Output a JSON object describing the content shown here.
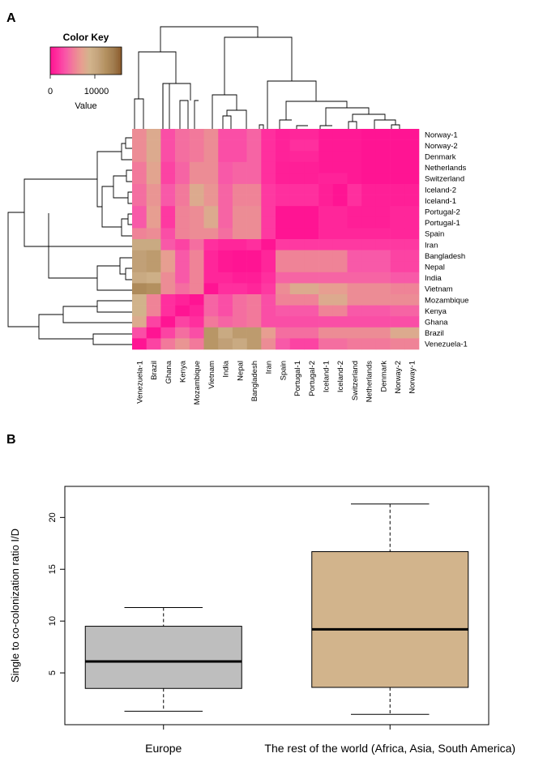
{
  "panels": {
    "a": "A",
    "b": "B"
  },
  "color_key": {
    "title": "Color Key",
    "xlabel": "Value",
    "ticks": [
      0,
      10000
    ],
    "tick_labels": [
      "0",
      "10000"
    ],
    "range": [
      0,
      16000
    ],
    "stops": [
      "#ff1493",
      "#ff34a0",
      "#f85aa8",
      "#f08098",
      "#e6a090",
      "#d2b48c",
      "#c4a47c",
      "#b4915f",
      "#a07c4f",
      "#8b5a2b"
    ]
  },
  "chart_data": [
    {
      "type": "heatmap",
      "title": "",
      "rows": [
        "Norway-1",
        "Norway-2",
        "Denmark",
        "Netherlands",
        "Switzerland",
        "Iceland-2",
        "Iceland-1",
        "Portugal-2",
        "Portugal-1",
        "Spain",
        "Iran",
        "Bangladesh",
        "Nepal",
        "India",
        "Vietnam",
        "Mozambique",
        "Kenya",
        "Ghana",
        "Brazil",
        "Venezuela-1"
      ],
      "columns": [
        "Venezuela-1",
        "Brazil",
        "Ghana",
        "Kenya",
        "Mozambique",
        "Vietnam",
        "India",
        "Nepal",
        "Bangladesh",
        "Iran",
        "Spain",
        "Portugal-1",
        "Portugal-2",
        "Iceland-1",
        "Iceland-2",
        "Switzerland",
        "Netherlands",
        "Denmark",
        "Norway-2",
        "Norway-1"
      ],
      "color_scale": [
        0,
        16000
      ],
      "values": [
        [
          6000,
          8000,
          3000,
          4500,
          5000,
          6000,
          3000,
          3000,
          4000,
          1500,
          800,
          1000,
          1000,
          300,
          300,
          300,
          0,
          0,
          0,
          0
        ],
        [
          6000,
          8000,
          3000,
          4500,
          5000,
          6000,
          3000,
          3000,
          4000,
          1500,
          800,
          1500,
          1500,
          300,
          300,
          300,
          0,
          0,
          0,
          0
        ],
        [
          6000,
          8000,
          3000,
          4500,
          5000,
          6000,
          3000,
          3000,
          4000,
          1500,
          800,
          1000,
          1000,
          300,
          300,
          300,
          0,
          0,
          0,
          0
        ],
        [
          5000,
          7500,
          2500,
          4000,
          6000,
          6000,
          3500,
          4000,
          4000,
          1500,
          600,
          600,
          600,
          300,
          300,
          300,
          0,
          0,
          0,
          0
        ],
        [
          5000,
          7500,
          2500,
          4000,
          6000,
          6000,
          3500,
          4000,
          4000,
          1500,
          600,
          600,
          600,
          800,
          800,
          300,
          0,
          0,
          0,
          0
        ],
        [
          4500,
          6500,
          3500,
          5000,
          8000,
          6500,
          4000,
          5500,
          5500,
          2000,
          1500,
          1500,
          1500,
          600,
          0,
          1500,
          600,
          600,
          600,
          600
        ],
        [
          4500,
          6500,
          3500,
          5000,
          8000,
          6500,
          4000,
          5500,
          5500,
          2000,
          1500,
          1500,
          1500,
          600,
          0,
          1500,
          600,
          600,
          600,
          600
        ],
        [
          3500,
          7000,
          2000,
          5500,
          6000,
          8000,
          4000,
          6000,
          6000,
          2000,
          0,
          0,
          0,
          1000,
          1000,
          600,
          600,
          600,
          1000,
          1000
        ],
        [
          3500,
          7000,
          2000,
          5500,
          6000,
          8000,
          4000,
          6000,
          6000,
          2000,
          0,
          0,
          0,
          1000,
          1000,
          600,
          600,
          600,
          1000,
          1000
        ],
        [
          5500,
          6000,
          3000,
          5500,
          6000,
          6000,
          4500,
          6000,
          6000,
          2000,
          0,
          0,
          0,
          1000,
          1000,
          1000,
          1000,
          1000,
          1000,
          1000
        ],
        [
          10000,
          10000,
          3500,
          2500,
          4500,
          1500,
          1000,
          1000,
          1500,
          0,
          2000,
          2000,
          2000,
          2000,
          2000,
          2000,
          2000,
          2000,
          2000,
          2000
        ],
        [
          11000,
          11500,
          7000,
          3500,
          5500,
          1000,
          200,
          0,
          0,
          1000,
          5500,
          5500,
          5500,
          5500,
          5500,
          3500,
          3500,
          3500,
          2500,
          2500
        ],
        [
          11000,
          11500,
          7000,
          3500,
          5500,
          1000,
          200,
          0,
          0,
          1000,
          5500,
          5500,
          5500,
          5500,
          5500,
          3500,
          3500,
          3500,
          2500,
          2500
        ],
        [
          10000,
          9500,
          6000,
          3500,
          5500,
          1000,
          1000,
          500,
          500,
          1500,
          4000,
          4000,
          4000,
          4000,
          4000,
          4000,
          4000,
          4000,
          3500,
          3500
        ],
        [
          13000,
          12500,
          6000,
          4500,
          5500,
          0,
          1500,
          1500,
          1000,
          2000,
          6000,
          8000,
          8000,
          7000,
          7000,
          6000,
          6000,
          6000,
          5500,
          5500
        ],
        [
          9000,
          5500,
          1500,
          800,
          0,
          4000,
          3000,
          4500,
          5000,
          3000,
          5500,
          5500,
          5500,
          8000,
          8000,
          6000,
          6000,
          6000,
          6000,
          6000
        ],
        [
          9000,
          5500,
          1500,
          0,
          800,
          4000,
          3000,
          4500,
          5000,
          3000,
          3500,
          3500,
          3500,
          5500,
          5500,
          3500,
          3500,
          3500,
          4000,
          4000
        ],
        [
          8000,
          2500,
          0,
          2500,
          1500,
          5000,
          4000,
          4500,
          5000,
          3000,
          3000,
          3000,
          3000,
          3000,
          3000,
          3000,
          3000,
          3000,
          3000,
          3000
        ],
        [
          3000,
          0,
          2500,
          4500,
          3000,
          12000,
          10000,
          11500,
          11500,
          7000,
          4500,
          4500,
          4500,
          6000,
          6000,
          6000,
          6000,
          6000,
          8000,
          8000
        ],
        [
          0,
          2500,
          5000,
          6500,
          5000,
          12000,
          11000,
          10000,
          11500,
          6000,
          3500,
          2500,
          2500,
          4500,
          4500,
          5000,
          5000,
          5000,
          5500,
          5500
        ]
      ]
    },
    {
      "type": "box",
      "title": "",
      "xlabel": "",
      "ylabel": "Single to co-colonization ratio I/D",
      "ylim": [
        0,
        23
      ],
      "yticks": [
        5,
        10,
        15,
        20
      ],
      "ytick_labels": [
        "5",
        "10",
        "15",
        "20"
      ],
      "categories": [
        "Europe",
        "The rest of the world (Africa, Asia, South America)"
      ],
      "boxes": [
        {
          "name": "Europe",
          "min": 1.3,
          "q1": 3.5,
          "median": 6.1,
          "q3": 9.5,
          "max": 11.3,
          "color": "#bebebe"
        },
        {
          "name": "The rest of the world (Africa, Asia, South America)",
          "min": 1.0,
          "q1": 3.6,
          "median": 9.2,
          "q3": 16.7,
          "max": 21.3,
          "color": "#d2b48c"
        }
      ]
    }
  ]
}
